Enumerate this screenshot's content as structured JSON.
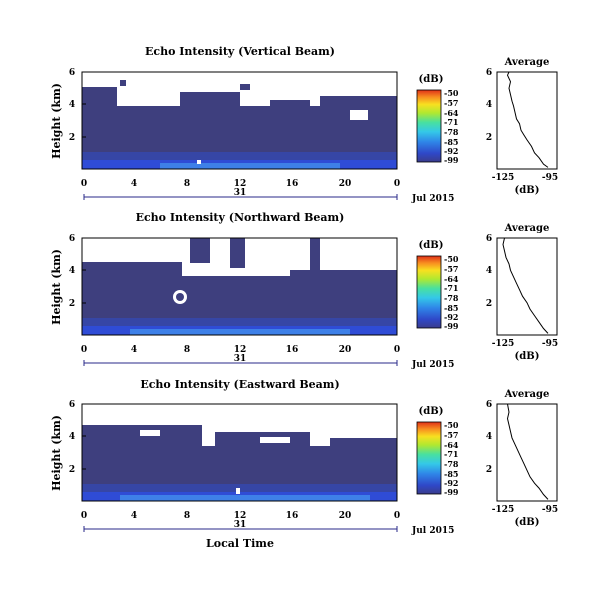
{
  "chart_data": [
    {
      "type": "heatmap",
      "title": "Echo Intensity (Vertical Beam)",
      "ylabel": "Height (km)",
      "x_ticks": [
        "0",
        "4",
        "8",
        "12",
        "16",
        "20",
        "0"
      ],
      "y_ticks": [
        "6",
        "4",
        "2"
      ],
      "date_day": "31",
      "date_month": "Jul 2015",
      "colorbar": {
        "unit": "(dB)",
        "ticks": [
          "-50",
          "-57",
          "-64",
          "-71",
          "-78",
          "-85",
          "-92",
          "-99"
        ]
      },
      "profile": {
        "title": "Average",
        "xlabel": "(dB)",
        "x_ticks": [
          "-125",
          "-95"
        ],
        "y_ticks": [
          "6",
          "4",
          "2"
        ],
        "xlim": [
          -130,
          -90
        ],
        "ylim": [
          0,
          6
        ],
        "points": [
          [
            -96,
            0.1
          ],
          [
            -99,
            0.3
          ],
          [
            -102,
            0.7
          ],
          [
            -105,
            1.0
          ],
          [
            -107,
            1.4
          ],
          [
            -110,
            1.8
          ],
          [
            -112,
            2.1
          ],
          [
            -114,
            2.4
          ],
          [
            -115,
            2.8
          ],
          [
            -117,
            3.1
          ],
          [
            -118,
            3.5
          ],
          [
            -119,
            3.9
          ],
          [
            -120,
            4.2
          ],
          [
            -121,
            4.6
          ],
          [
            -122,
            5.0
          ],
          [
            -121,
            5.4
          ],
          [
            -123,
            5.8
          ],
          [
            -122,
            6.0
          ]
        ]
      }
    },
    {
      "type": "heatmap",
      "title": "Echo Intensity (Northward Beam)",
      "ylabel": "Height (km)",
      "x_ticks": [
        "0",
        "4",
        "8",
        "12",
        "16",
        "20",
        "0"
      ],
      "y_ticks": [
        "6",
        "4",
        "2"
      ],
      "date_day": "31",
      "date_month": "Jul 2015",
      "colorbar": {
        "unit": "(dB)",
        "ticks": [
          "-50",
          "-57",
          "-64",
          "-71",
          "-78",
          "-85",
          "-92",
          "-99"
        ]
      },
      "profile": {
        "title": "Average",
        "xlabel": "(dB)",
        "x_ticks": [
          "-125",
          "-95"
        ],
        "y_ticks": [
          "6",
          "4",
          "2"
        ],
        "xlim": [
          -130,
          -90
        ],
        "ylim": [
          0,
          6
        ],
        "points": [
          [
            -96,
            0.1
          ],
          [
            -99,
            0.4
          ],
          [
            -102,
            0.8
          ],
          [
            -105,
            1.2
          ],
          [
            -108,
            1.6
          ],
          [
            -110,
            2.0
          ],
          [
            -113,
            2.4
          ],
          [
            -115,
            2.8
          ],
          [
            -117,
            3.2
          ],
          [
            -119,
            3.6
          ],
          [
            -121,
            4.0
          ],
          [
            -122,
            4.4
          ],
          [
            -124,
            4.8
          ],
          [
            -125,
            5.2
          ],
          [
            -126,
            5.6
          ],
          [
            -125,
            6.0
          ]
        ]
      }
    },
    {
      "type": "heatmap",
      "title": "Echo Intensity (Eastward Beam)",
      "ylabel": "Height (km)",
      "xlabel": "Local Time",
      "x_ticks": [
        "0",
        "4",
        "8",
        "12",
        "16",
        "20",
        "0"
      ],
      "y_ticks": [
        "6",
        "4",
        "2"
      ],
      "date_day": "31",
      "date_month": "Jul 2015",
      "colorbar": {
        "unit": "(dB)",
        "ticks": [
          "-50",
          "-57",
          "-64",
          "-71",
          "-78",
          "-85",
          "-92",
          "-99"
        ]
      },
      "profile": {
        "title": "Average",
        "xlabel": "(dB)",
        "x_ticks": [
          "-125",
          "-95"
        ],
        "y_ticks": [
          "6",
          "4",
          "2"
        ],
        "xlim": [
          -130,
          -90
        ],
        "ylim": [
          0,
          6
        ],
        "points": [
          [
            -96,
            0.1
          ],
          [
            -99,
            0.4
          ],
          [
            -102,
            0.8
          ],
          [
            -105,
            1.1
          ],
          [
            -108,
            1.5
          ],
          [
            -110,
            1.9
          ],
          [
            -112,
            2.3
          ],
          [
            -114,
            2.7
          ],
          [
            -116,
            3.1
          ],
          [
            -118,
            3.5
          ],
          [
            -120,
            3.9
          ],
          [
            -121,
            4.3
          ],
          [
            -122,
            4.7
          ],
          [
            -123,
            5.1
          ],
          [
            -122,
            5.5
          ],
          [
            -123,
            6.0
          ]
        ]
      }
    }
  ]
}
